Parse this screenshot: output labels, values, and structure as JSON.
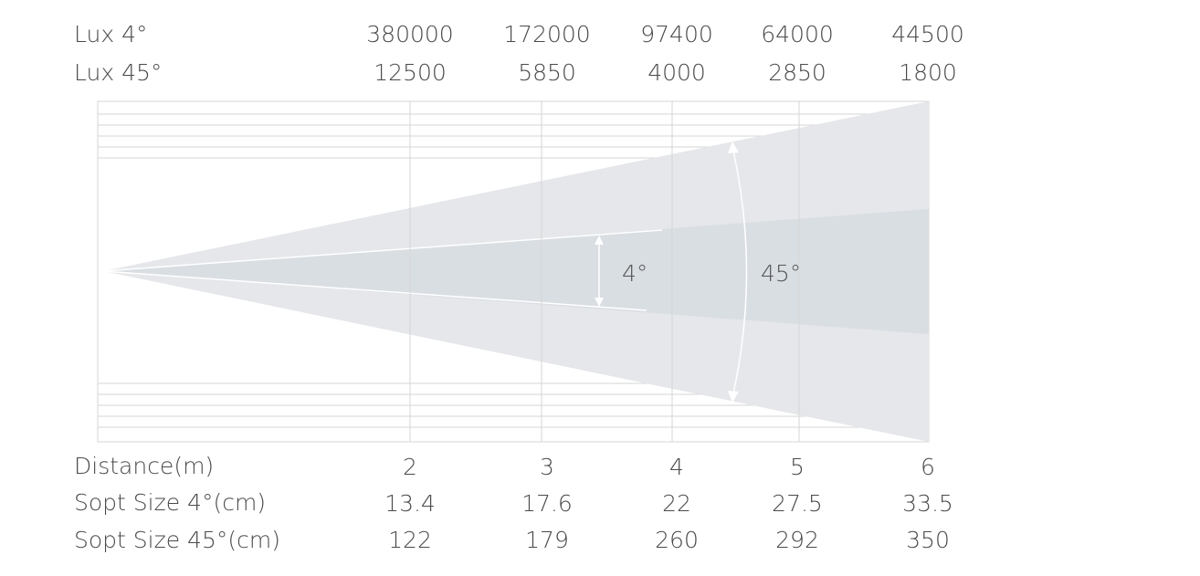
{
  "header_rows": [
    {
      "label": "Lux 4°",
      "values": [
        "380000",
        "172000",
        "97400",
        "64000",
        "44500"
      ]
    },
    {
      "label": "Lux 45°",
      "values": [
        "12500",
        "5850",
        "4000",
        "2850",
        "1800"
      ]
    }
  ],
  "footer_rows": [
    {
      "label": "Distance(m)",
      "values": [
        "2",
        "3",
        "4",
        "5",
        "6"
      ]
    },
    {
      "label": "Sopt Size 4°(cm)",
      "values": [
        "13.4",
        "17.6",
        "22",
        "27.5",
        "33.5"
      ]
    },
    {
      "label": "Sopt Size 45°(cm)",
      "values": [
        "122",
        "179",
        "260",
        "292",
        "350"
      ]
    }
  ],
  "diagram": {
    "narrow_beam_label": "4°",
    "wide_beam_label": "45°",
    "wide_beam_color": "#e5e7ea",
    "narrow_beam_color": "#d9dee3",
    "grid_color": "#d6d6d6"
  }
}
